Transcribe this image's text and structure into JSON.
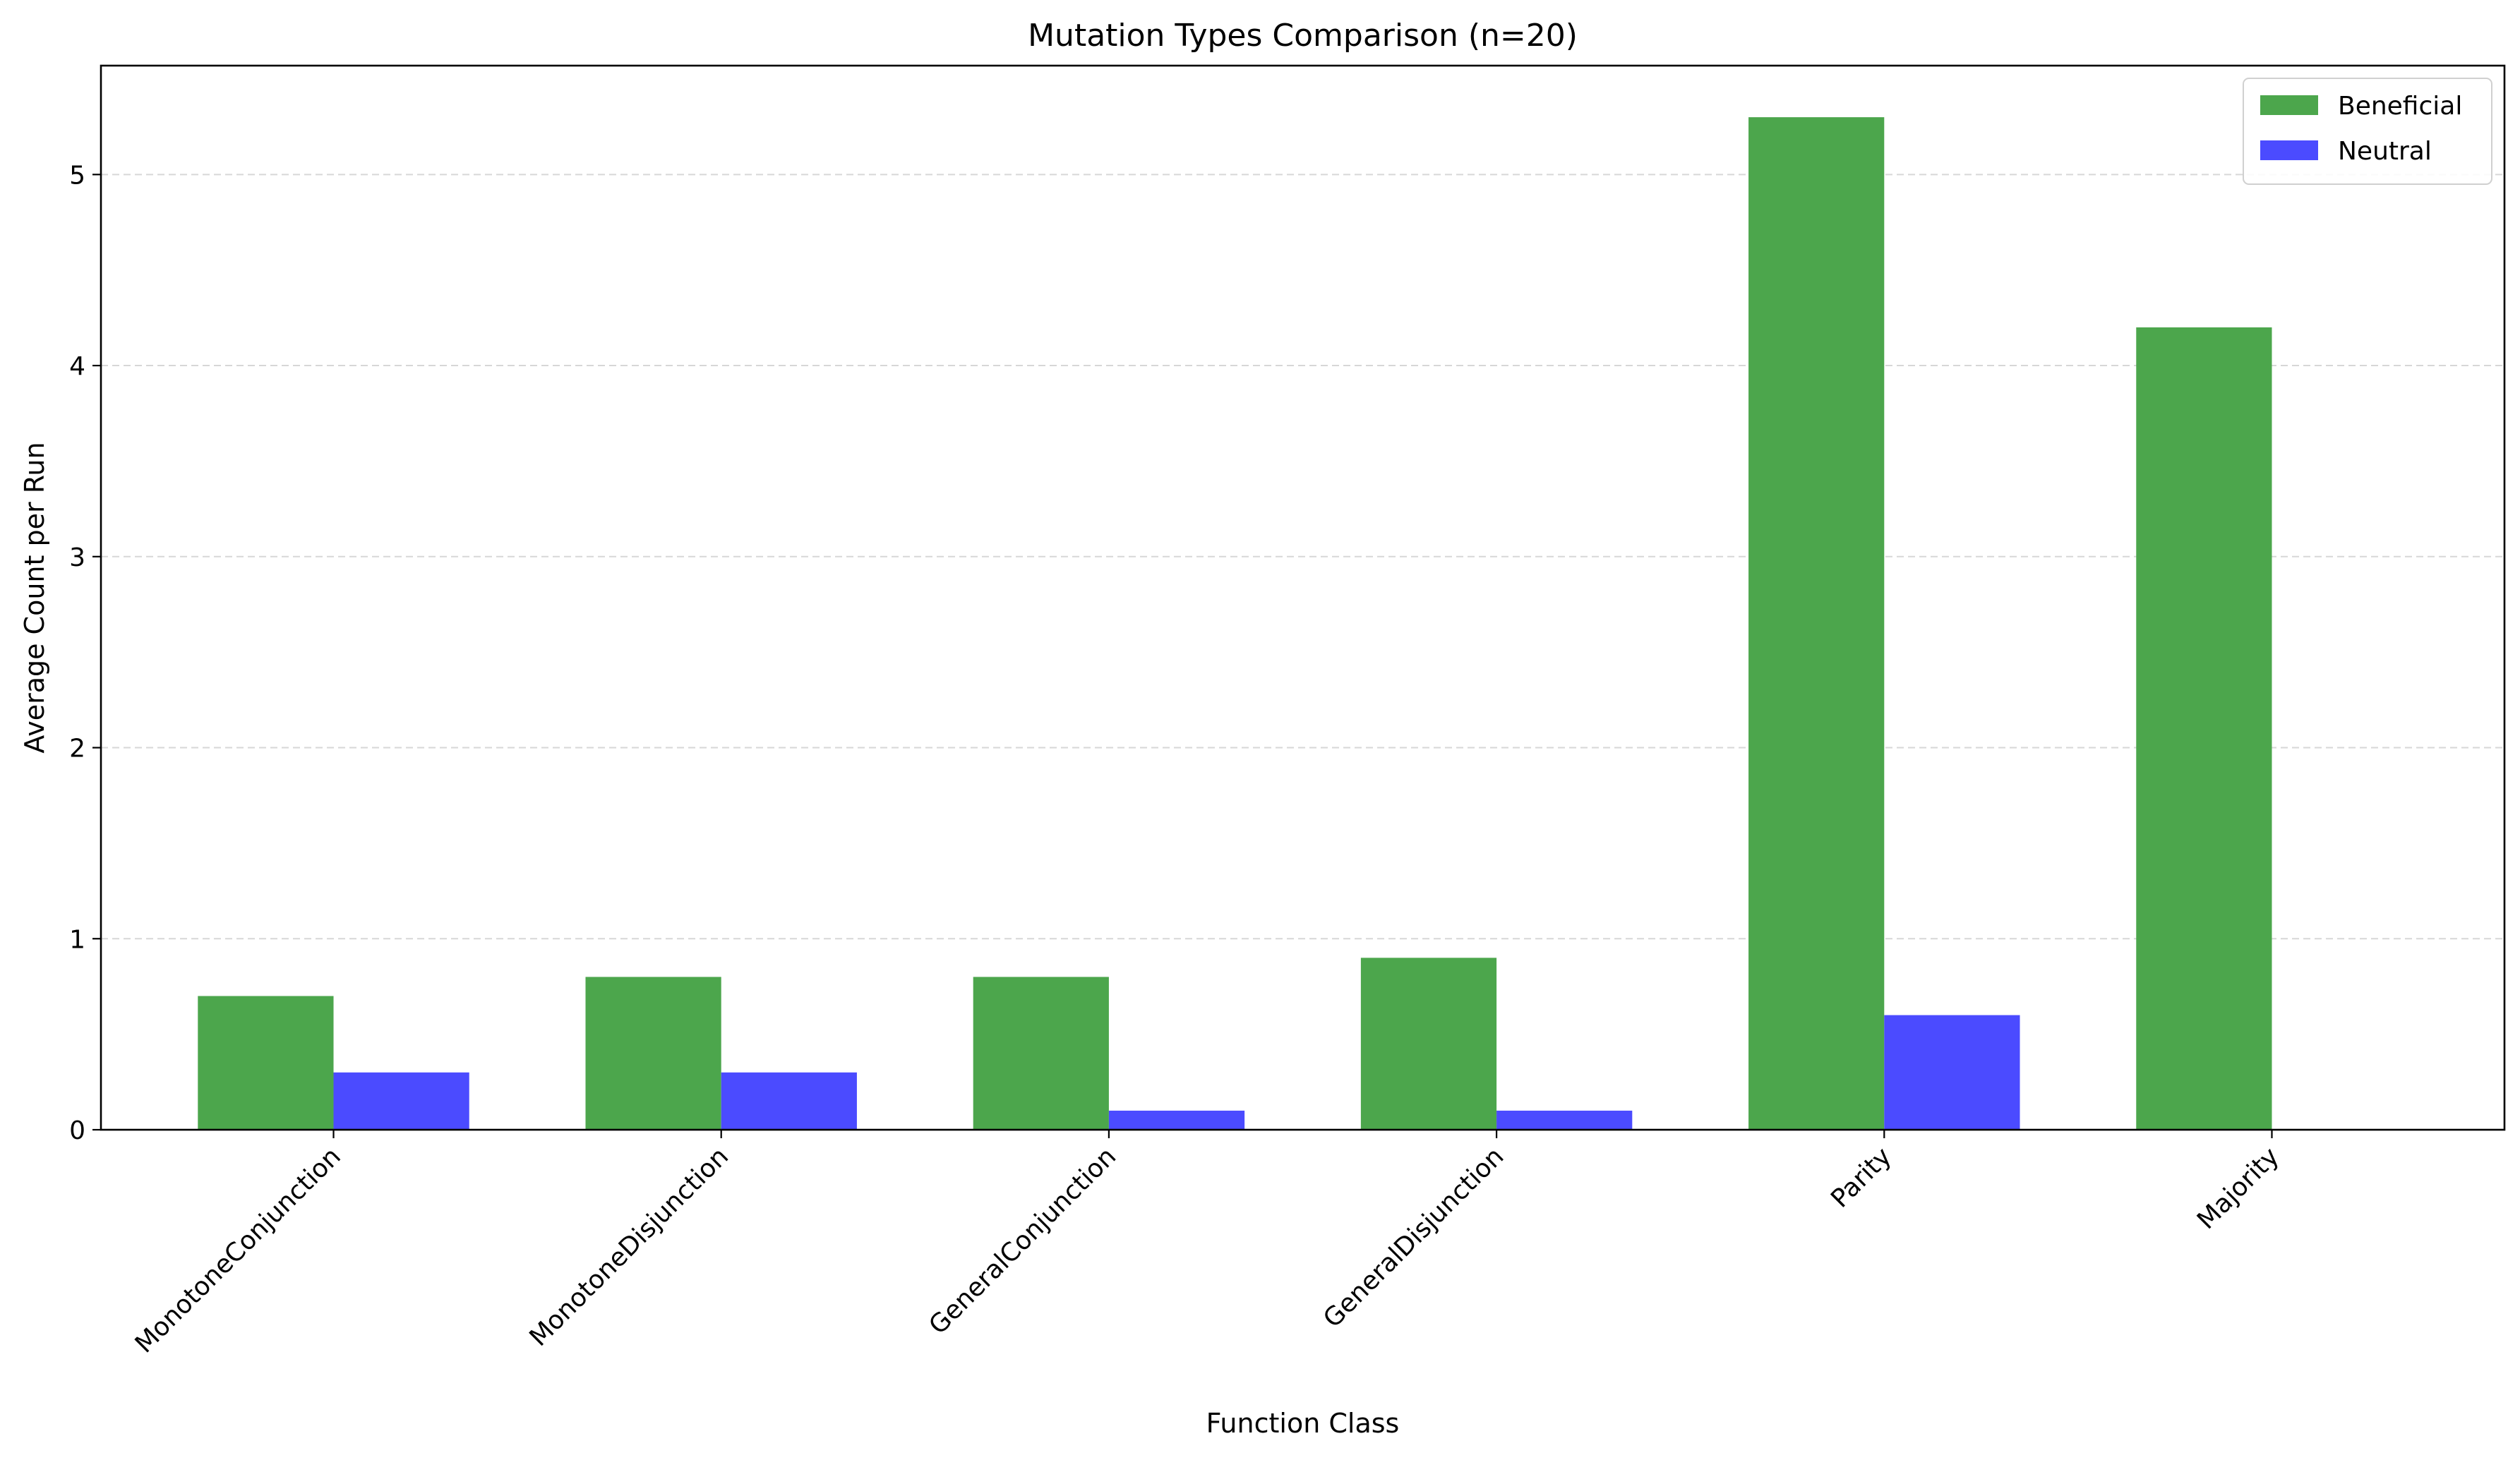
{
  "chart_data": {
    "type": "bar",
    "title": "Mutation Types Comparison (n=20)",
    "xlabel": "Function Class",
    "ylabel": "Average Count per Run",
    "categories": [
      "MonotoneConjunction",
      "MonotoneDisjunction",
      "GeneralConjunction",
      "GeneralDisjunction",
      "Parity",
      "Majority"
    ],
    "series": [
      {
        "name": "Beneficial",
        "color": "#4ca64c",
        "values": [
          0.7,
          0.8,
          0.8,
          0.9,
          5.3,
          4.2
        ]
      },
      {
        "name": "Neutral",
        "color": "#4b4bff",
        "values": [
          0.3,
          0.3,
          0.1,
          0.1,
          0.6,
          0.0
        ]
      }
    ],
    "ylim": [
      0,
      5.57
    ],
    "yticks": [
      0,
      1,
      2,
      3,
      4,
      5
    ],
    "grid": "y-dashed",
    "legend": "top-right"
  }
}
